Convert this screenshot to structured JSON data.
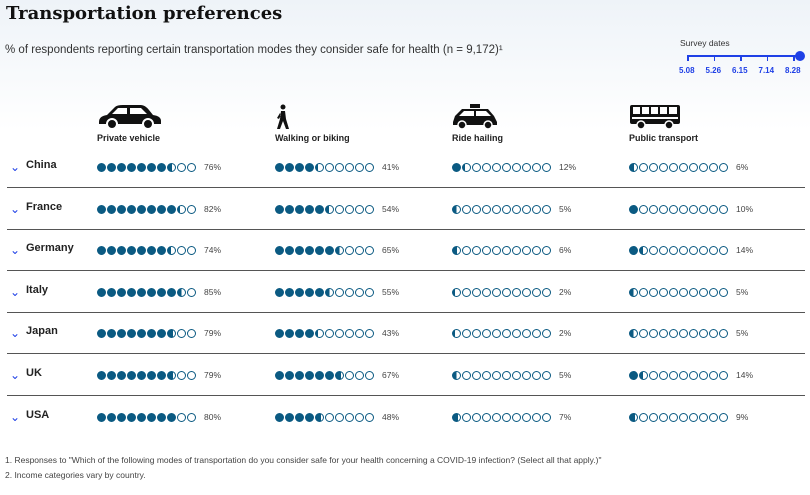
{
  "title": "Transportation preferences",
  "subtitle": "% of respondents reporting certain transportation modes they consider safe for health (n = 9,172)¹",
  "survey": {
    "label": "Survey dates",
    "dates": [
      "5.08",
      "5.26",
      "6.15",
      "7.14",
      "8.28"
    ],
    "selected": "8.28"
  },
  "colors": {
    "fill": "#0b5a82",
    "accent": "#1f40e6"
  },
  "chart_data": {
    "type": "table",
    "title": "Transportation preferences",
    "categories": [
      "Private vehicle",
      "Walking or biking",
      "Ride hailing",
      "Public transport"
    ],
    "countries": [
      "China",
      "France",
      "Germany",
      "Italy",
      "Japan",
      "UK",
      "USA"
    ],
    "series": [
      {
        "name": "China",
        "values": [
          76,
          41,
          12,
          6
        ]
      },
      {
        "name": "France",
        "values": [
          82,
          54,
          5,
          10
        ]
      },
      {
        "name": "Germany",
        "values": [
          74,
          65,
          6,
          14
        ]
      },
      {
        "name": "Italy",
        "values": [
          85,
          55,
          2,
          5
        ]
      },
      {
        "name": "Japan",
        "values": [
          79,
          43,
          2,
          5
        ]
      },
      {
        "name": "UK",
        "values": [
          79,
          67,
          5,
          14
        ]
      },
      {
        "name": "USA",
        "values": [
          80,
          48,
          7,
          9
        ]
      }
    ]
  },
  "footnotes": [
    "1. Responses to \"Which of the following modes of transportation do you consider safe for your health concerning a COVID-19 infection? (Select all that apply.)\"",
    "2. Income categories vary by country."
  ]
}
